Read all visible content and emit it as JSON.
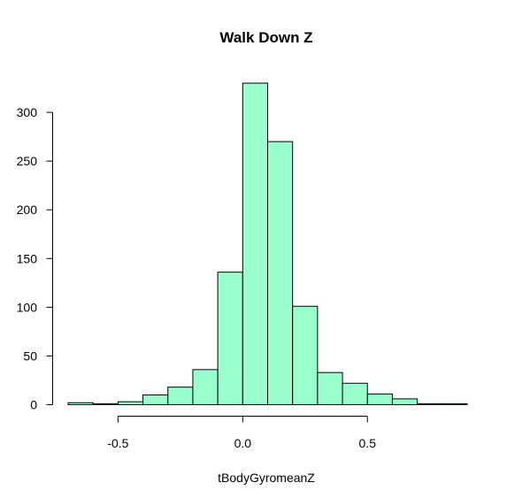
{
  "chart_data": {
    "type": "bar",
    "title": "Walk Down Z",
    "xlabel": "tBodyGyromeanZ",
    "ylabel": "",
    "bin_edges": [
      -0.7,
      -0.6,
      -0.5,
      -0.4,
      -0.3,
      -0.2,
      -0.1,
      0.0,
      0.1,
      0.2,
      0.3,
      0.4,
      0.5,
      0.6,
      0.7,
      0.8,
      0.9
    ],
    "values": [
      2,
      1,
      3,
      10,
      18,
      36,
      136,
      330,
      270,
      101,
      33,
      22,
      11,
      6,
      1,
      1
    ],
    "xlim": [
      -0.7,
      0.9
    ],
    "ylim": [
      0,
      330
    ],
    "x_ticks": [
      -0.5,
      0.0,
      0.5
    ],
    "x_tick_labels": [
      "-0.5",
      "0.0",
      "0.5"
    ],
    "y_ticks": [
      0,
      50,
      100,
      150,
      200,
      250,
      300
    ],
    "y_tick_labels": [
      "0",
      "50",
      "100",
      "150",
      "200",
      "250",
      "300"
    ],
    "bar_fill": "#99ffcc",
    "bar_stroke": "#000000",
    "grid": false
  }
}
